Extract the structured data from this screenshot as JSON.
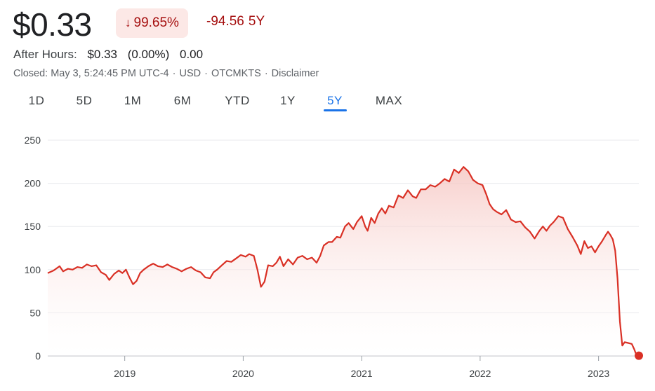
{
  "quote": {
    "price": "$0.33",
    "pct_change": "99.65%",
    "pct_arrow": "↓",
    "abs_change": "-94.56",
    "period": "5Y",
    "after_hours_label": "After Hours:",
    "after_hours_price": "$0.33",
    "after_hours_pct": "(0.00%)",
    "after_hours_change": "0.00",
    "closed_text": "Closed: May 3, 5:24:45 PM UTC-4",
    "currency": "USD",
    "exchange": "OTCMKTS",
    "disclaimer": "Disclaimer",
    "separator": "·"
  },
  "tabs": [
    {
      "label": "1D",
      "active": false
    },
    {
      "label": "5D",
      "active": false
    },
    {
      "label": "1M",
      "active": false
    },
    {
      "label": "6M",
      "active": false
    },
    {
      "label": "YTD",
      "active": false
    },
    {
      "label": "1Y",
      "active": false
    },
    {
      "label": "5Y",
      "active": true
    },
    {
      "label": "MAX",
      "active": false
    }
  ],
  "colors": {
    "line": "#d93025",
    "fill_top": "#f6c7c3",
    "accent": "#1a73e8",
    "negative": "#a50e0e",
    "negative_bg": "#fce8e6",
    "grid": "#e8eaed"
  },
  "chart_data": {
    "type": "area",
    "title": "",
    "xlabel": "",
    "ylabel": "",
    "ylim": [
      0,
      250
    ],
    "xlim": [
      2018.35,
      2023.34
    ],
    "y_ticks": [
      0,
      50,
      100,
      150,
      200,
      250
    ],
    "x_ticks": [
      {
        "label": "2019",
        "value": 2019
      },
      {
        "label": "2020",
        "value": 2020
      },
      {
        "label": "2021",
        "value": 2021
      },
      {
        "label": "2022",
        "value": 2022
      },
      {
        "label": "2023",
        "value": 2023
      }
    ],
    "grid": true,
    "series": [
      {
        "points": [
          [
            2018.35,
            96
          ],
          [
            2018.4,
            99
          ],
          [
            2018.45,
            104
          ],
          [
            2018.48,
            98
          ],
          [
            2018.52,
            101
          ],
          [
            2018.56,
            100
          ],
          [
            2018.6,
            103
          ],
          [
            2018.64,
            102
          ],
          [
            2018.68,
            106
          ],
          [
            2018.72,
            104
          ],
          [
            2018.76,
            105
          ],
          [
            2018.8,
            97
          ],
          [
            2018.84,
            94
          ],
          [
            2018.87,
            88
          ],
          [
            2018.91,
            95
          ],
          [
            2018.95,
            99
          ],
          [
            2018.98,
            96
          ],
          [
            2019.01,
            100
          ],
          [
            2019.04,
            91
          ],
          [
            2019.07,
            83
          ],
          [
            2019.1,
            87
          ],
          [
            2019.13,
            96
          ],
          [
            2019.16,
            100
          ],
          [
            2019.2,
            104
          ],
          [
            2019.24,
            107
          ],
          [
            2019.28,
            104
          ],
          [
            2019.32,
            103
          ],
          [
            2019.36,
            106
          ],
          [
            2019.4,
            103
          ],
          [
            2019.44,
            101
          ],
          [
            2019.48,
            98
          ],
          [
            2019.52,
            101
          ],
          [
            2019.56,
            103
          ],
          [
            2019.6,
            99
          ],
          [
            2019.64,
            97
          ],
          [
            2019.68,
            91
          ],
          [
            2019.72,
            90
          ],
          [
            2019.75,
            97
          ],
          [
            2019.78,
            100
          ],
          [
            2019.82,
            105
          ],
          [
            2019.86,
            110
          ],
          [
            2019.9,
            109
          ],
          [
            2019.94,
            113
          ],
          [
            2019.98,
            117
          ],
          [
            2020.02,
            115
          ],
          [
            2020.05,
            118
          ],
          [
            2020.09,
            116
          ],
          [
            2020.12,
            100
          ],
          [
            2020.15,
            80
          ],
          [
            2020.18,
            86
          ],
          [
            2020.21,
            105
          ],
          [
            2020.25,
            104
          ],
          [
            2020.28,
            108
          ],
          [
            2020.31,
            115
          ],
          [
            2020.34,
            104
          ],
          [
            2020.38,
            112
          ],
          [
            2020.42,
            106
          ],
          [
            2020.46,
            114
          ],
          [
            2020.5,
            116
          ],
          [
            2020.54,
            112
          ],
          [
            2020.58,
            114
          ],
          [
            2020.62,
            108
          ],
          [
            2020.65,
            116
          ],
          [
            2020.68,
            128
          ],
          [
            2020.72,
            132
          ],
          [
            2020.75,
            132
          ],
          [
            2020.79,
            138
          ],
          [
            2020.82,
            137
          ],
          [
            2020.86,
            150
          ],
          [
            2020.89,
            154
          ],
          [
            2020.93,
            147
          ],
          [
            2020.96,
            155
          ],
          [
            2021.0,
            162
          ],
          [
            2021.03,
            150
          ],
          [
            2021.05,
            145
          ],
          [
            2021.08,
            160
          ],
          [
            2021.11,
            154
          ],
          [
            2021.14,
            165
          ],
          [
            2021.17,
            171
          ],
          [
            2021.2,
            165
          ],
          [
            2021.23,
            174
          ],
          [
            2021.27,
            172
          ],
          [
            2021.31,
            186
          ],
          [
            2021.35,
            183
          ],
          [
            2021.39,
            192
          ],
          [
            2021.43,
            185
          ],
          [
            2021.46,
            183
          ],
          [
            2021.5,
            193
          ],
          [
            2021.54,
            193
          ],
          [
            2021.58,
            198
          ],
          [
            2021.62,
            196
          ],
          [
            2021.66,
            200
          ],
          [
            2021.7,
            205
          ],
          [
            2021.74,
            202
          ],
          [
            2021.78,
            216
          ],
          [
            2021.82,
            212
          ],
          [
            2021.86,
            219
          ],
          [
            2021.9,
            214
          ],
          [
            2021.94,
            204
          ],
          [
            2021.98,
            200
          ],
          [
            2022.02,
            198
          ],
          [
            2022.05,
            188
          ],
          [
            2022.08,
            176
          ],
          [
            2022.11,
            170
          ],
          [
            2022.14,
            167
          ],
          [
            2022.18,
            164
          ],
          [
            2022.22,
            169
          ],
          [
            2022.26,
            158
          ],
          [
            2022.3,
            155
          ],
          [
            2022.34,
            156
          ],
          [
            2022.38,
            149
          ],
          [
            2022.42,
            144
          ],
          [
            2022.46,
            136
          ],
          [
            2022.5,
            145
          ],
          [
            2022.53,
            150
          ],
          [
            2022.56,
            145
          ],
          [
            2022.59,
            151
          ],
          [
            2022.62,
            155
          ],
          [
            2022.66,
            162
          ],
          [
            2022.7,
            160
          ],
          [
            2022.74,
            147
          ],
          [
            2022.78,
            138
          ],
          [
            2022.82,
            128
          ],
          [
            2022.85,
            118
          ],
          [
            2022.88,
            133
          ],
          [
            2022.91,
            125
          ],
          [
            2022.94,
            127
          ],
          [
            2022.97,
            120
          ],
          [
            2023.0,
            127
          ],
          [
            2023.03,
            133
          ],
          [
            2023.06,
            140
          ],
          [
            2023.08,
            144
          ],
          [
            2023.1,
            140
          ],
          [
            2023.12,
            135
          ],
          [
            2023.14,
            122
          ],
          [
            2023.16,
            90
          ],
          [
            2023.18,
            40
          ],
          [
            2023.2,
            12
          ],
          [
            2023.22,
            16
          ],
          [
            2023.25,
            15
          ],
          [
            2023.28,
            14
          ],
          [
            2023.3,
            8
          ],
          [
            2023.32,
            1
          ],
          [
            2023.34,
            0.33
          ]
        ]
      }
    ]
  }
}
